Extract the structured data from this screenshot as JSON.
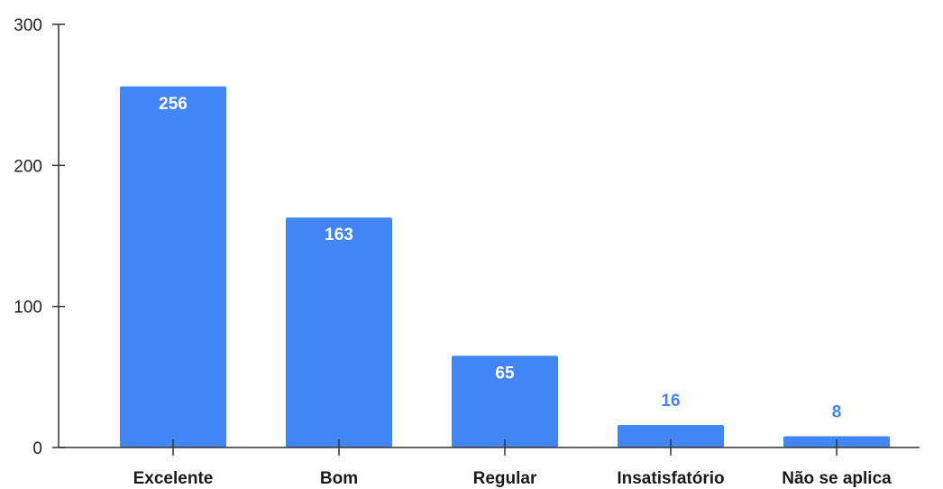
{
  "chart_data": {
    "type": "bar",
    "title": "",
    "xlabel": "",
    "ylabel": "",
    "categories": [
      "Excelente",
      "Bom",
      "Regular",
      "Insatisfatório",
      "Não se aplica"
    ],
    "values": [
      256,
      163,
      65,
      16,
      8
    ],
    "data_labels": [
      "256",
      "163",
      "65",
      "16",
      "8"
    ],
    "ylim": [
      0,
      300
    ],
    "yticks": [
      0,
      100,
      200,
      300
    ],
    "ytick_labels": [
      "0",
      "100",
      "200",
      "300"
    ],
    "grid": false,
    "legend": "none",
    "colors": {
      "bar": "#4285f4",
      "label_inside": "#ffffff",
      "label_outside": "#4285f4",
      "axis": "#333333"
    }
  }
}
